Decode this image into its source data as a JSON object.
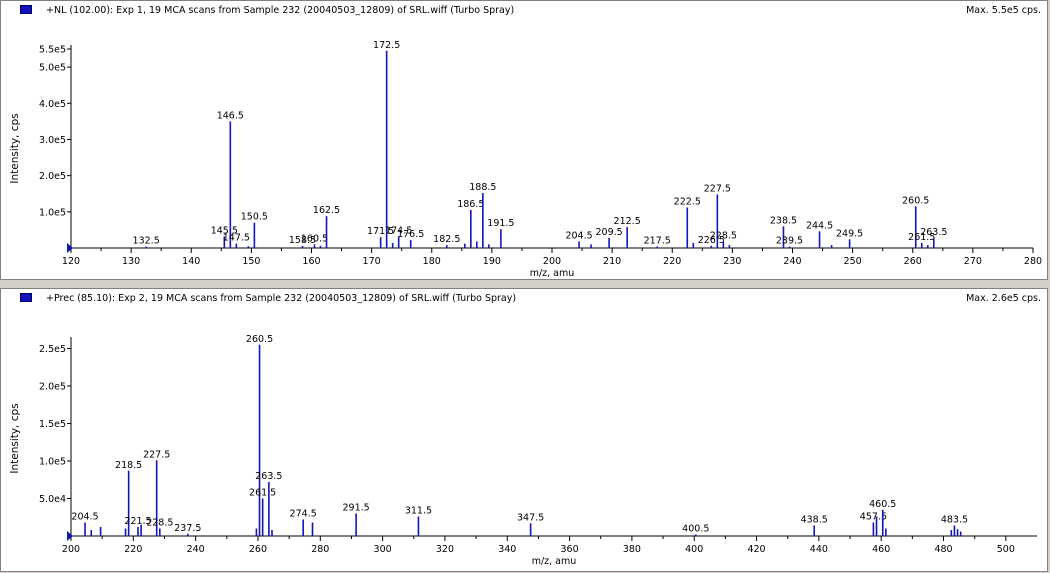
{
  "colors": {
    "peak": "#1414b4",
    "axis": "#000000",
    "marker": "#1414b4"
  },
  "chart_data": [
    {
      "type": "bar",
      "title": "+NL (102.00): Exp 1, 19 MCA scans from Sample 232 (20040503_12809) of SRL.wiff (Turbo Spray)",
      "max_label": "Max. 5.5e5 cps.",
      "xlabel": "m/z, amu",
      "ylabel": "Intensity, cps",
      "xlim": [
        120,
        280
      ],
      "ylim": [
        0,
        550000
      ],
      "x_ticks": [
        120,
        130,
        140,
        150,
        160,
        170,
        180,
        190,
        200,
        210,
        220,
        230,
        240,
        250,
        260,
        270,
        280
      ],
      "y_tick_values": [
        100000,
        200000,
        300000,
        400000,
        500000,
        550000
      ],
      "y_tick_labels": [
        "1.0e5",
        "2.0e5",
        "3.0e5",
        "4.0e5",
        "5.0e5",
        "5.5e5"
      ],
      "peaks": [
        {
          "x": 132.5,
          "y": 4000,
          "label": "132.5"
        },
        {
          "x": 145.5,
          "y": 32000,
          "label": "145.5"
        },
        {
          "x": 146.5,
          "y": 350000,
          "label": "146.5"
        },
        {
          "x": 147.5,
          "y": 12000,
          "label": "147.5"
        },
        {
          "x": 150.5,
          "y": 70000,
          "label": "150.5"
        },
        {
          "x": 158.5,
          "y": 6000,
          "label": "158.5"
        },
        {
          "x": 160.5,
          "y": 10000,
          "label": "160.5"
        },
        {
          "x": 162.5,
          "y": 88000,
          "label": "162.5"
        },
        {
          "x": 171.5,
          "y": 30000,
          "label": "171.5"
        },
        {
          "x": 172.5,
          "y": 545000,
          "label": "172.5"
        },
        {
          "x": 174.5,
          "y": 32000,
          "label": "174.5"
        },
        {
          "x": 176.5,
          "y": 22000,
          "label": "176.5"
        },
        {
          "x": 182.5,
          "y": 8000,
          "label": "182.5"
        },
        {
          "x": 186.5,
          "y": 105000,
          "label": "186.5"
        },
        {
          "x": 188.5,
          "y": 152000,
          "label": "188.5"
        },
        {
          "x": 191.5,
          "y": 52000,
          "label": "191.5"
        },
        {
          "x": 204.5,
          "y": 18000,
          "label": "204.5"
        },
        {
          "x": 209.5,
          "y": 28000,
          "label": "209.5"
        },
        {
          "x": 212.5,
          "y": 58000,
          "label": "212.5"
        },
        {
          "x": 217.5,
          "y": 4000,
          "label": "217.5"
        },
        {
          "x": 222.5,
          "y": 112000,
          "label": "222.5"
        },
        {
          "x": 226.5,
          "y": 6000,
          "label": "226.5"
        },
        {
          "x": 227.5,
          "y": 148000,
          "label": "227.5"
        },
        {
          "x": 228.5,
          "y": 18000,
          "label": "228.5"
        },
        {
          "x": 238.5,
          "y": 60000,
          "label": "238.5"
        },
        {
          "x": 239.5,
          "y": 4000,
          "label": "239.5"
        },
        {
          "x": 244.5,
          "y": 46000,
          "label": "244.5"
        },
        {
          "x": 249.5,
          "y": 24000,
          "label": "249.5"
        },
        {
          "x": 260.5,
          "y": 115000,
          "label": "260.5"
        },
        {
          "x": 261.5,
          "y": 14000,
          "label": "261.5"
        },
        {
          "x": 263.5,
          "y": 28000,
          "label": "263.5"
        },
        {
          "x": 149.5,
          "y": 5000
        },
        {
          "x": 161.5,
          "y": 6000
        },
        {
          "x": 173.5,
          "y": 14000
        },
        {
          "x": 185.5,
          "y": 12000
        },
        {
          "x": 187.5,
          "y": 18000
        },
        {
          "x": 189.5,
          "y": 10000
        },
        {
          "x": 206.5,
          "y": 10000
        },
        {
          "x": 223.5,
          "y": 14000
        },
        {
          "x": 229.5,
          "y": 8000
        },
        {
          "x": 246.5,
          "y": 8000
        },
        {
          "x": 262.5,
          "y": 8000
        }
      ]
    },
    {
      "type": "bar",
      "title": "+Prec (85.10): Exp 2, 19 MCA scans from Sample 232 (20040503_12809) of SRL.wiff (Turbo Spray)",
      "max_label": "Max. 2.6e5 cps.",
      "xlabel": "m/z, amu",
      "ylabel": "Intensity, cps",
      "xlim": [
        200,
        510
      ],
      "ylim": [
        0,
        260000
      ],
      "x_ticks": [
        200,
        220,
        240,
        260,
        280,
        300,
        320,
        340,
        360,
        380,
        400,
        420,
        440,
        460,
        480,
        500
      ],
      "y_tick_values": [
        50000,
        100000,
        150000,
        200000,
        250000
      ],
      "y_tick_labels": [
        "5.0e4",
        "1.0e5",
        "1.5e5",
        "2.0e5",
        "2.5e5"
      ],
      "peaks": [
        {
          "x": 204.5,
          "y": 18000,
          "label": "204.5"
        },
        {
          "x": 218.5,
          "y": 87000,
          "label": "218.5"
        },
        {
          "x": 221.5,
          "y": 12000,
          "label": "221.5"
        },
        {
          "x": 227.5,
          "y": 101000,
          "label": "227.5"
        },
        {
          "x": 228.5,
          "y": 10000,
          "label": "228.5"
        },
        {
          "x": 237.5,
          "y": 3000,
          "label": "237.5"
        },
        {
          "x": 260.5,
          "y": 255000,
          "label": "260.5"
        },
        {
          "x": 261.5,
          "y": 50000,
          "label": "261.5"
        },
        {
          "x": 263.5,
          "y": 72000,
          "label": "263.5"
        },
        {
          "x": 274.5,
          "y": 22000,
          "label": "274.5"
        },
        {
          "x": 291.5,
          "y": 30000,
          "label": "291.5"
        },
        {
          "x": 311.5,
          "y": 26000,
          "label": "311.5"
        },
        {
          "x": 347.5,
          "y": 17000,
          "label": "347.5"
        },
        {
          "x": 400.5,
          "y": 2000,
          "label": "400.5"
        },
        {
          "x": 438.5,
          "y": 14000,
          "label": "438.5"
        },
        {
          "x": 457.5,
          "y": 18000,
          "label": "457.5"
        },
        {
          "x": 460.5,
          "y": 35000,
          "label": "460.5"
        },
        {
          "x": 483.5,
          "y": 14000,
          "label": "483.5"
        },
        {
          "x": 206.5,
          "y": 8000
        },
        {
          "x": 209.5,
          "y": 12000
        },
        {
          "x": 217.5,
          "y": 10000
        },
        {
          "x": 222.5,
          "y": 15000
        },
        {
          "x": 259.5,
          "y": 10000
        },
        {
          "x": 264.5,
          "y": 8000
        },
        {
          "x": 277.5,
          "y": 18000
        },
        {
          "x": 458.5,
          "y": 26000
        },
        {
          "x": 461.5,
          "y": 10000
        },
        {
          "x": 482.5,
          "y": 8000
        },
        {
          "x": 484.5,
          "y": 9000
        },
        {
          "x": 485.5,
          "y": 6000
        }
      ]
    }
  ]
}
